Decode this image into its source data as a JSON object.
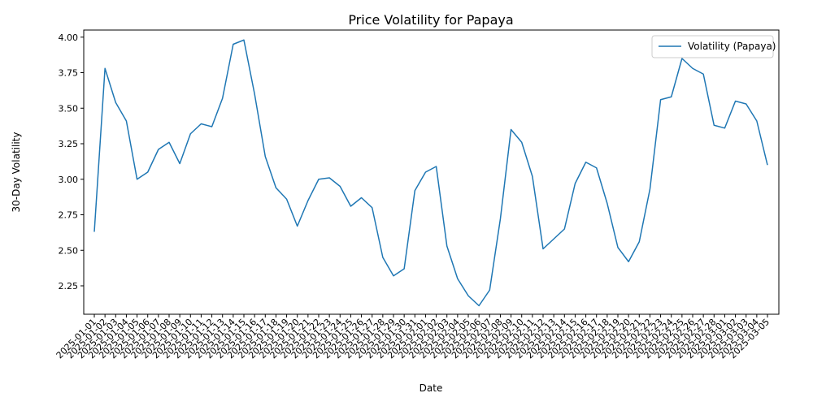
{
  "chart_data": {
    "type": "line",
    "title": "Price Volatility for Papaya",
    "xlabel": "Date",
    "ylabel": "30-Day Volatility",
    "ylim": [
      2.05,
      4.05
    ],
    "yticks": [
      "2.25",
      "2.50",
      "2.75",
      "3.00",
      "3.25",
      "3.50",
      "3.75",
      "4.00"
    ],
    "grid": false,
    "legend_position": "top-right",
    "series": [
      {
        "name": "Volatility (Papaya)",
        "color": "#1f77b4",
        "values": [
          2.63,
          3.78,
          3.54,
          3.41,
          3.0,
          3.05,
          3.21,
          3.26,
          3.11,
          3.32,
          3.39,
          3.37,
          3.57,
          3.95,
          3.98,
          3.6,
          3.16,
          2.94,
          2.86,
          2.67,
          2.85,
          3.0,
          3.01,
          2.95,
          2.81,
          2.87,
          2.8,
          2.45,
          2.32,
          2.37,
          2.92,
          3.05,
          3.09,
          2.53,
          2.3,
          2.18,
          2.11,
          2.22,
          2.72,
          3.35,
          3.26,
          3.02,
          2.51,
          2.58,
          2.65,
          2.97,
          3.12,
          3.08,
          2.83,
          2.52,
          2.42,
          2.56,
          2.93,
          3.56,
          3.58,
          3.85,
          3.78,
          3.74,
          3.38,
          3.36,
          3.55,
          3.53,
          3.41,
          3.1
        ]
      }
    ],
    "categories": [
      "2025-01-01",
      "2025-01-02",
      "2025-01-03",
      "2025-01-04",
      "2025-01-05",
      "2025-01-06",
      "2025-01-07",
      "2025-01-08",
      "2025-01-09",
      "2025-01-10",
      "2025-01-11",
      "2025-01-12",
      "2025-01-13",
      "2025-01-14",
      "2025-01-15",
      "2025-01-16",
      "2025-01-17",
      "2025-01-18",
      "2025-01-19",
      "2025-01-20",
      "2025-01-21",
      "2025-01-22",
      "2025-01-23",
      "2025-01-24",
      "2025-01-25",
      "2025-01-26",
      "2025-01-27",
      "2025-01-28",
      "2025-01-29",
      "2025-01-30",
      "2025-01-31",
      "2025-02-01",
      "2025-02-02",
      "2025-02-03",
      "2025-02-04",
      "2025-02-05",
      "2025-02-06",
      "2025-02-07",
      "2025-02-08",
      "2025-02-09",
      "2025-02-10",
      "2025-02-11",
      "2025-02-12",
      "2025-02-13",
      "2025-02-14",
      "2025-02-15",
      "2025-02-16",
      "2025-02-17",
      "2025-02-18",
      "2025-02-19",
      "2025-02-20",
      "2025-02-21",
      "2025-02-22",
      "2025-02-23",
      "2025-02-24",
      "2025-02-25",
      "2025-02-26",
      "2025-02-27",
      "2025-02-28",
      "2025-03-01",
      "2025-03-02",
      "2025-03-03",
      "2025-03-04",
      "2025-03-05"
    ]
  }
}
